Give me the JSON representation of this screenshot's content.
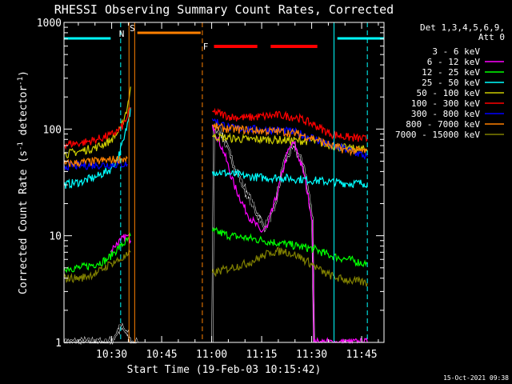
{
  "chart_data": {
    "type": "line",
    "title": "RHESSI Observing Summary Count Rates, Corrected",
    "xlabel": "Start Time (19-Feb-03 10:15:42)",
    "ylabel": "Corrected Count Rate (s",
    "ylabel_exp1": "-1",
    "ylabel_mid": " detector",
    "ylabel_exp2": "-1",
    "ylabel_end": ")",
    "y_scale": "log",
    "ylim": [
      1,
      1000
    ],
    "xlim_minutes": [
      0,
      96
    ],
    "x_ticks": [
      {
        "minute": 14.3,
        "label": "10:30"
      },
      {
        "minute": 29.3,
        "label": "10:45"
      },
      {
        "minute": 44.3,
        "label": "11:00"
      },
      {
        "minute": 59.3,
        "label": "11:15"
      },
      {
        "minute": 74.3,
        "label": "11:30"
      },
      {
        "minute": 89.3,
        "label": "11:45"
      }
    ],
    "y_ticks": [
      {
        "value": 1,
        "label": "1"
      },
      {
        "value": 10,
        "label": "10"
      },
      {
        "value": 100,
        "label": "100"
      },
      {
        "value": 1000,
        "label": "1000"
      }
    ],
    "legend_header": [
      "Det 1,3,4,5,6,9,",
      "Att 0"
    ],
    "legend_placement": "top-right-outside",
    "flags": [
      {
        "label": "N",
        "color": "#00ffff",
        "label_minute": 17.3
      },
      {
        "label": "S",
        "color": "#ff8000",
        "label_minute": 20.5
      },
      {
        "label": "F",
        "color": "#ff0000",
        "label_minute": 42.5
      }
    ],
    "footer_date": "15-Oct-2021 09:38",
    "series": [
      {
        "name": "3 - 6 keV",
        "color": "#000000",
        "x": [
          0,
          8,
          14,
          17,
          19,
          20,
          21,
          22,
          44.5,
          45,
          47,
          50,
          54,
          58,
          60,
          63,
          66,
          69,
          72,
          74.5,
          75
        ],
        "y": [
          1,
          1,
          1,
          1.4,
          1.2,
          1,
          1,
          1,
          1,
          110,
          95,
          55,
          28,
          16,
          12,
          17,
          50,
          70,
          45,
          15,
          1
        ]
      },
      {
        "name": "6 - 12 keV",
        "color": "#ff00ff",
        "x": [
          14,
          15,
          17,
          19,
          20,
          44.5,
          45,
          48,
          51,
          55,
          59,
          61,
          64,
          67,
          69,
          72,
          74.5,
          75,
          82,
          91
        ],
        "y": [
          7,
          8,
          9,
          10,
          9,
          110,
          100,
          60,
          30,
          16,
          11,
          12,
          25,
          60,
          75,
          38,
          14,
          1,
          1,
          1
        ]
      },
      {
        "name": "12 - 25 keV",
        "color": "#00ff00",
        "x": [
          0,
          5,
          10,
          13,
          15,
          17,
          19,
          20,
          44.5,
          45,
          50,
          55,
          60,
          65,
          70,
          75,
          80,
          85,
          90,
          91
        ],
        "y": [
          5,
          5,
          5.5,
          6,
          7,
          8,
          9,
          10,
          11,
          11,
          10,
          9.5,
          9,
          8.5,
          8,
          7.5,
          6.5,
          6,
          5.5,
          5.5
        ]
      },
      {
        "name": "25 - 50 keV",
        "color": "#00ffff",
        "x": [
          0,
          5,
          10,
          14,
          16,
          18,
          19.5,
          20,
          44.5,
          45,
          50,
          55,
          60,
          65,
          70,
          75,
          80,
          85,
          90,
          91
        ],
        "y": [
          30,
          32,
          36,
          42,
          52,
          80,
          130,
          160,
          40,
          40,
          38,
          36,
          35,
          35,
          34,
          33,
          32,
          31,
          31,
          31
        ]
      },
      {
        "name": "50 - 100 keV",
        "color": "#cccc00",
        "x": [
          0,
          5,
          10,
          14,
          17,
          19,
          20,
          44.5,
          45,
          50,
          55,
          60,
          65,
          70,
          75,
          80,
          85,
          91
        ],
        "y": [
          58,
          62,
          68,
          78,
          100,
          160,
          250,
          85,
          85,
          82,
          80,
          80,
          79,
          78,
          77,
          70,
          66,
          64
        ]
      },
      {
        "name": "100 - 300 keV",
        "color": "#ff0000",
        "x": [
          0,
          5,
          10,
          14,
          17,
          19,
          20,
          44.5,
          45,
          50,
          55,
          60,
          65,
          70,
          75,
          80,
          85,
          91
        ],
        "y": [
          72,
          74,
          80,
          88,
          100,
          130,
          160,
          145,
          145,
          130,
          128,
          132,
          135,
          128,
          110,
          90,
          84,
          80
        ]
      },
      {
        "name": "300 - 800 keV",
        "color": "#0000ff",
        "x": [
          0,
          10,
          19,
          44.5,
          45,
          50,
          55,
          60,
          65,
          70,
          75,
          80,
          85,
          91
        ],
        "y": [
          45,
          46,
          47,
          125,
          120,
          102,
          100,
          98,
          97,
          92,
          82,
          70,
          64,
          55
        ]
      },
      {
        "name": "800 - 7000 keV",
        "color": "#ff8000",
        "x": [
          0,
          10,
          19,
          44.5,
          45,
          50,
          55,
          60,
          65,
          70,
          75,
          80,
          85,
          91
        ],
        "y": [
          47,
          50,
          53,
          108,
          105,
          100,
          98,
          96,
          95,
          90,
          82,
          70,
          63,
          62
        ]
      },
      {
        "name": "7000 - 15000 keV",
        "color": "#808000",
        "x": [
          0,
          5,
          10,
          14,
          17,
          19,
          20,
          44.5,
          45,
          50,
          55,
          60,
          62,
          66,
          70,
          74,
          78,
          82,
          86,
          91
        ],
        "y": [
          4,
          4,
          4.5,
          5.5,
          6,
          6.5,
          7,
          4.5,
          4.5,
          5,
          5.5,
          6.5,
          7,
          7.2,
          6.5,
          5.5,
          4.5,
          4,
          3.8,
          3.6
        ]
      }
    ]
  }
}
